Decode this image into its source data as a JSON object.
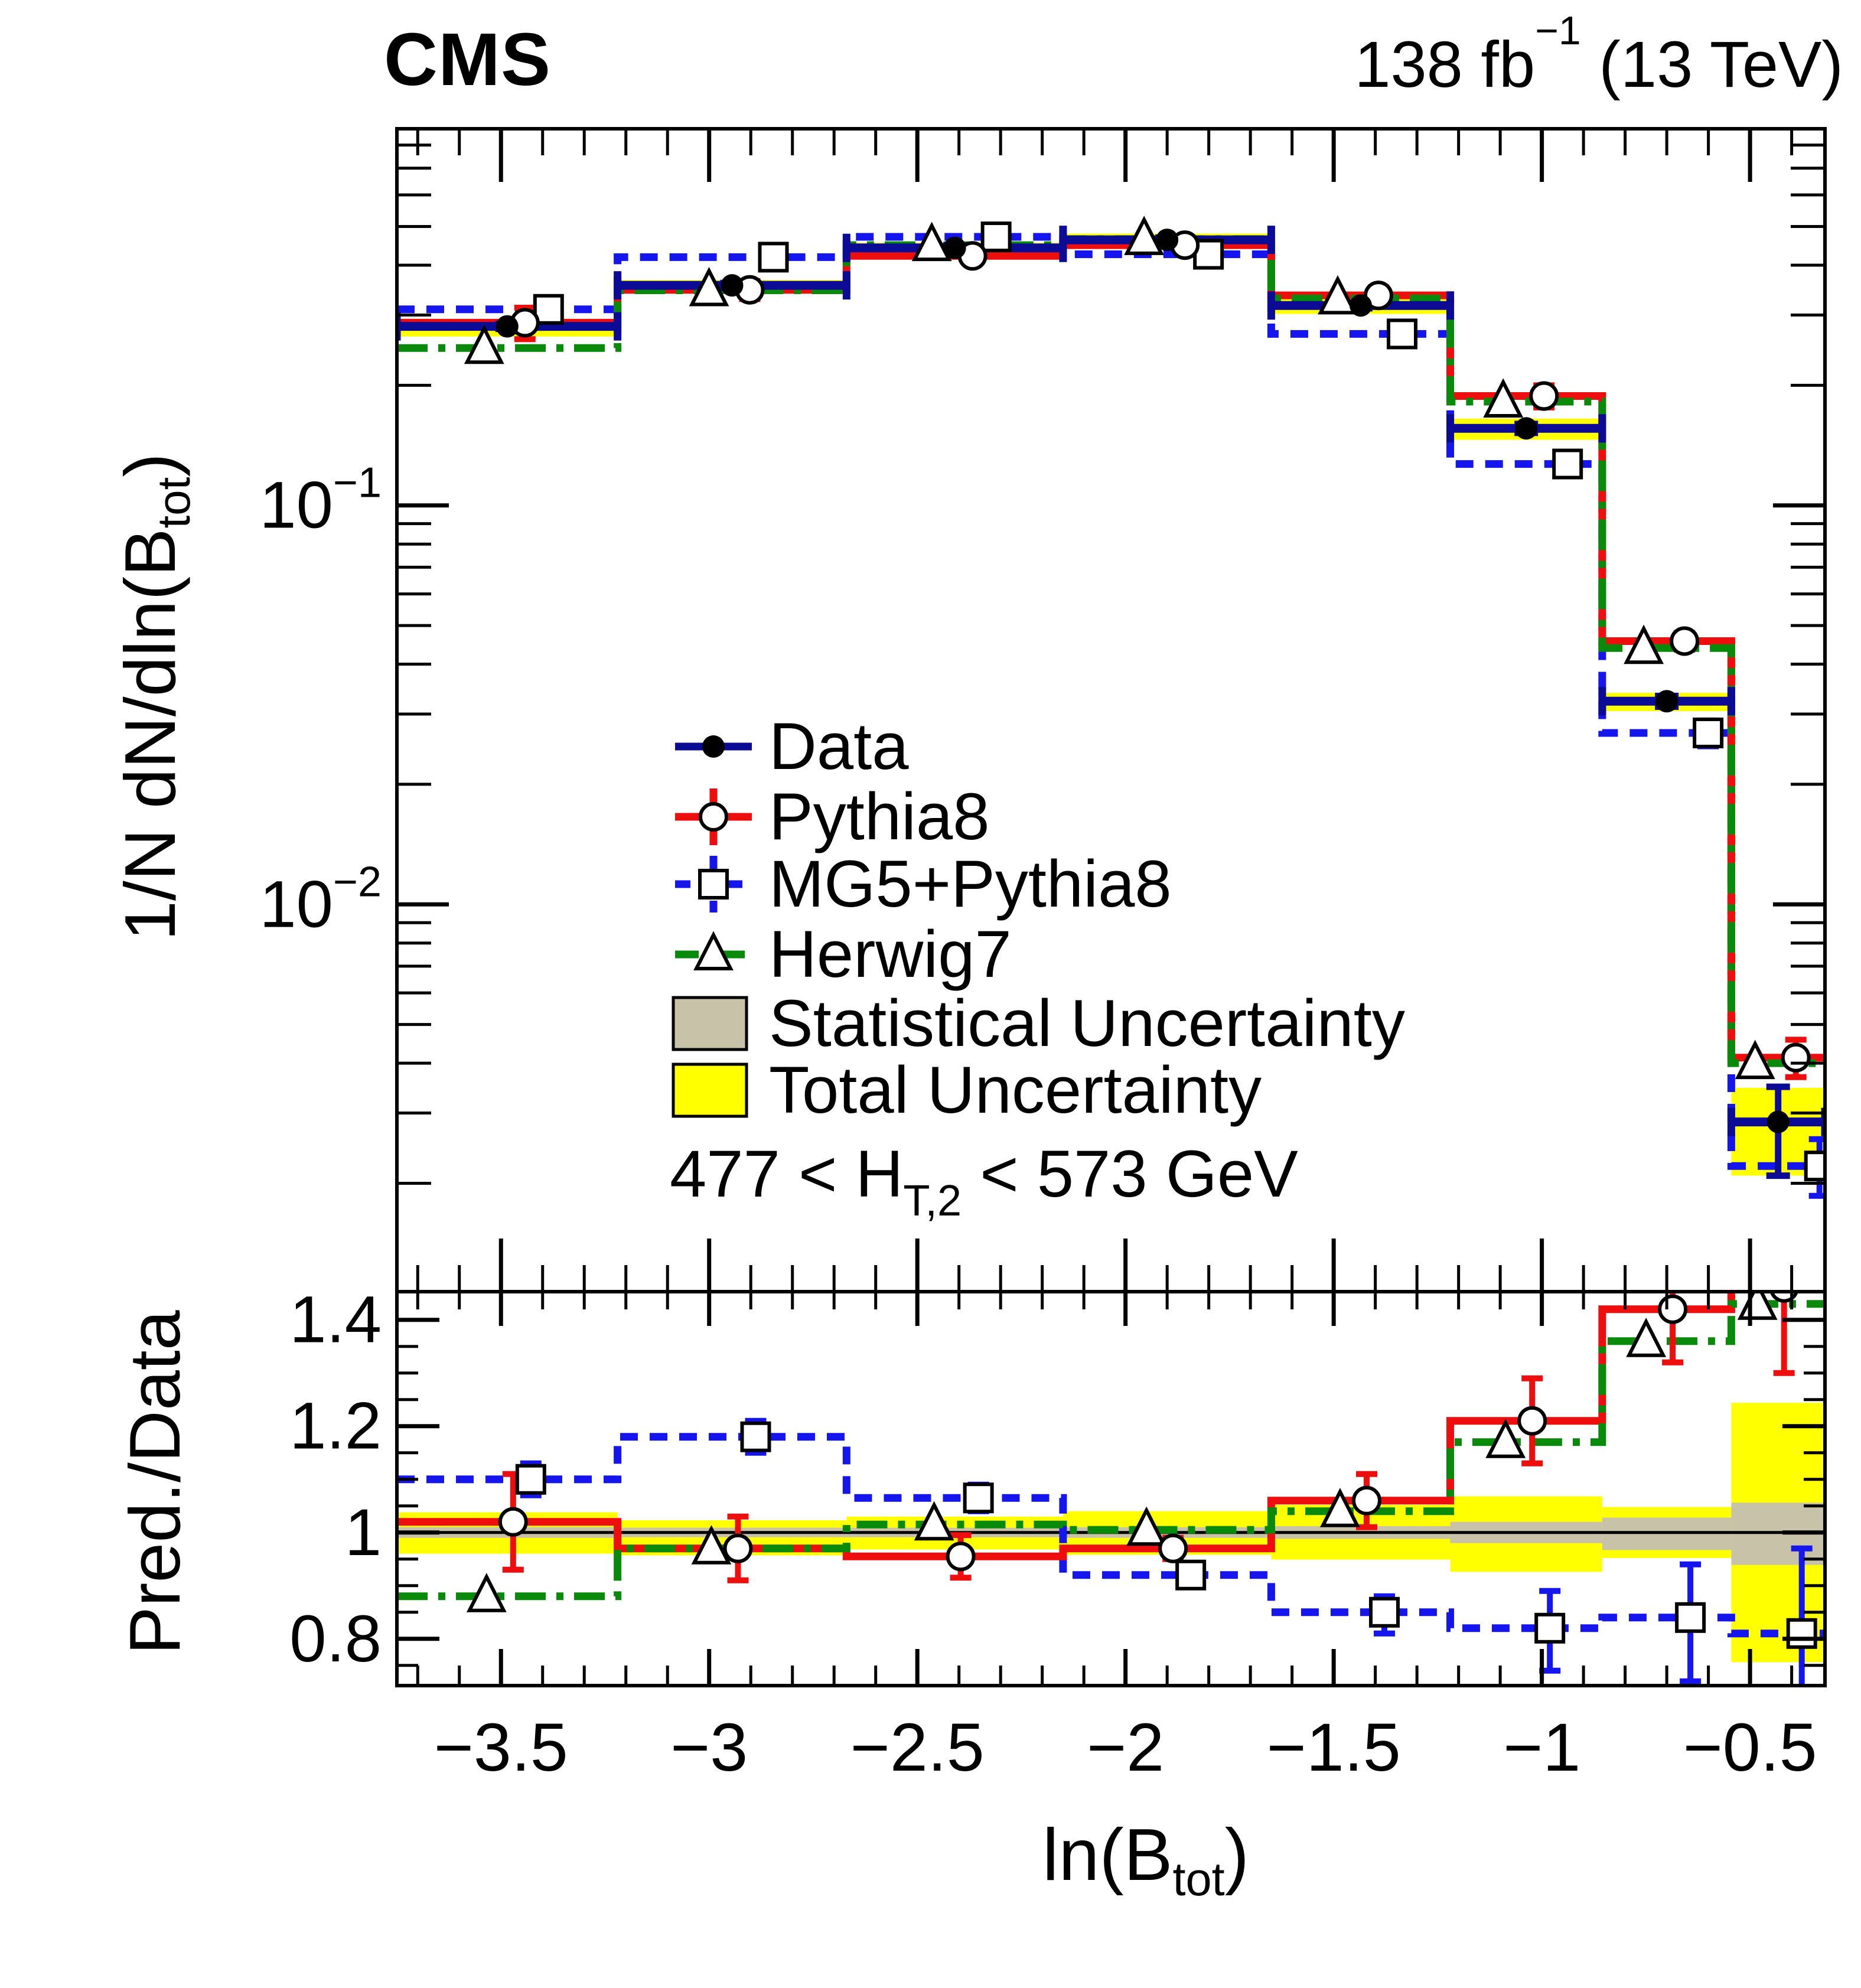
{
  "header": {
    "experiment": "CMS",
    "lumi": {
      "value": "138 fb",
      "sup": "−1",
      "suffix": " (13 TeV)"
    }
  },
  "chart_data": {
    "type": "histogram-with-ratio",
    "colors": {
      "data": "#0b0b96",
      "pythia8": "#ee0e0e",
      "mg5": "#1515ee",
      "herwig7": "#0a8a0a",
      "total_band": "#ffff00",
      "stat_band": "#c8c2a8",
      "frame": "#000000"
    },
    "x": {
      "min": -3.75,
      "max": -0.32,
      "title": {
        "main": "ln(B",
        "sub": "tot",
        "close": ")"
      },
      "major_ticks": [
        {
          "v": -3.5,
          "label": "−3.5"
        },
        {
          "v": -3.0,
          "label": "−3"
        },
        {
          "v": -2.5,
          "label": "−2.5"
        },
        {
          "v": -2.0,
          "label": "−2"
        },
        {
          "v": -1.5,
          "label": "−1.5"
        },
        {
          "v": -1.0,
          "label": "−1"
        },
        {
          "v": -0.5,
          "label": "−0.5"
        }
      ],
      "minor_step": 0.1
    },
    "bin_edges": [
      -3.75,
      -3.22,
      -2.67,
      -2.15,
      -1.65,
      -1.22,
      -0.855,
      -0.545,
      -0.32
    ],
    "main": {
      "ymin": 0.00107,
      "ymax": 0.879,
      "ytitle": {
        "pre": "1/N dN/dln(B",
        "sub": "tot",
        "close": ")"
      },
      "ytick_labels": [
        {
          "v": 0.1,
          "base": "10",
          "exp": "−1"
        },
        {
          "v": 0.01,
          "base": "10",
          "exp": "−2"
        }
      ],
      "series": {
        "data": {
          "label": "Data",
          "values": [
            0.281,
            0.356,
            0.442,
            0.463,
            0.317,
            0.156,
            0.0323,
            0.00285
          ],
          "stat_lo": [
            0.277,
            0.351,
            0.436,
            0.457,
            0.312,
            0.152,
            0.0313,
            0.00209
          ],
          "stat_hi": [
            0.285,
            0.361,
            0.448,
            0.469,
            0.322,
            0.16,
            0.0333,
            0.00349
          ],
          "total_lo": [
            0.265,
            0.345,
            0.429,
            0.447,
            0.302,
            0.146,
            0.0305,
            0.00209
          ],
          "total_hi": [
            0.288,
            0.367,
            0.455,
            0.48,
            0.333,
            0.165,
            0.0339,
            0.00347
          ]
        },
        "pythia8": {
          "label": "Pythia8",
          "values": [
            0.287,
            0.347,
            0.422,
            0.449,
            0.336,
            0.188,
            0.0457,
            0.00413
          ],
          "err_lo": [
            0.261,
            0.329,
            0.405,
            0.44,
            0.32,
            0.176,
            0.0435,
            0.00369
          ],
          "err_hi": [
            0.313,
            0.365,
            0.439,
            0.458,
            0.352,
            0.2,
            0.0479,
            0.00458
          ]
        },
        "mg5": {
          "label": "MG5+Pythia8",
          "values": [
            0.31,
            0.419,
            0.471,
            0.426,
            0.269,
            0.127,
            0.0269,
            0.00221
          ],
          "err_lo": [
            0.301,
            0.411,
            0.462,
            0.418,
            0.26,
            0.12,
            0.0249,
            0.00186
          ],
          "err_hi": [
            0.319,
            0.427,
            0.48,
            0.434,
            0.278,
            0.134,
            0.0289,
            0.00258
          ]
        },
        "herwig7": {
          "label": "Herwig7",
          "values": [
            0.248,
            0.346,
            0.449,
            0.465,
            0.33,
            0.182,
            0.0439,
            0.004
          ]
        }
      }
    },
    "ratio": {
      "ymin": 0.712,
      "ymax": 1.453,
      "ytitle": "Pred./Data",
      "reference": 1,
      "major_ticks": [
        {
          "v": 0.8,
          "label": "0.8"
        },
        {
          "v": 1.0,
          "label": "1"
        },
        {
          "v": 1.2,
          "label": "1.2"
        },
        {
          "v": 1.4,
          "label": "1.4"
        }
      ],
      "minor_step": 0.05,
      "series": {
        "pythia8": {
          "values": [
            1.02,
            0.97,
            0.955,
            0.97,
            1.06,
            1.21,
            1.42,
            1.46
          ],
          "err_lo": [
            0.93,
            0.91,
            0.915,
            0.95,
            1.01,
            1.13,
            1.32,
            1.3
          ],
          "err_hi": [
            1.11,
            1.03,
            0.995,
            0.99,
            1.11,
            1.29,
            1.46,
            1.6
          ]
        },
        "mg5": {
          "values": [
            1.1,
            1.18,
            1.065,
            0.92,
            0.85,
            0.82,
            0.84,
            0.81
          ],
          "err_lo": [
            1.07,
            1.15,
            1.04,
            0.9,
            0.81,
            0.74,
            0.72,
            0.65
          ],
          "err_hi": [
            1.13,
            1.21,
            1.09,
            0.94,
            0.88,
            0.89,
            0.94,
            0.97
          ]
        },
        "herwig7": {
          "values": [
            0.88,
            0.97,
            1.015,
            1.005,
            1.04,
            1.17,
            1.36,
            1.43
          ]
        }
      },
      "bands": {
        "total_lo": [
          0.96,
          0.957,
          0.968,
          0.958,
          0.949,
          0.926,
          0.952,
          0.756
        ],
        "total_hi": [
          1.038,
          1.023,
          1.03,
          1.04,
          1.052,
          1.068,
          1.048,
          1.244
        ],
        "stat_lo": [
          0.99,
          0.991,
          0.991,
          0.99,
          0.988,
          0.98,
          0.967,
          0.939
        ],
        "stat_hi": [
          1.01,
          1.009,
          1.009,
          1.01,
          1.012,
          1.02,
          1.028,
          1.056
        ]
      }
    },
    "legend": {
      "items": [
        {
          "key": "data",
          "label": "Data"
        },
        {
          "key": "pythia8",
          "label": "Pythia8"
        },
        {
          "key": "mg5",
          "label": "MG5+Pythia8"
        },
        {
          "key": "herwig7",
          "label": "Herwig7"
        },
        {
          "key": "stat",
          "label": "Statistical Uncertainty"
        },
        {
          "key": "total",
          "label": "Total Uncertainty"
        }
      ],
      "region": {
        "pre": "477 < H",
        "sub": "T,2",
        "suffix": " < 573 GeV"
      }
    }
  }
}
